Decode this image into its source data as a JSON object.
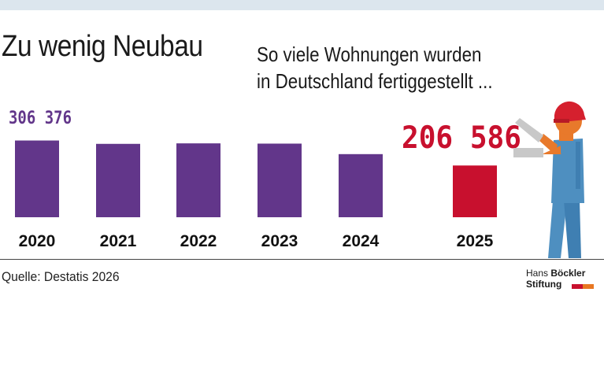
{
  "header": {
    "title": "Zu wenig Neubau",
    "subtitle_line1": "So viele Wohnungen wurden",
    "subtitle_line2": "in Deutschland fertiggestellt ..."
  },
  "chart_data": {
    "type": "bar",
    "categories": [
      "2020",
      "2021",
      "2022",
      "2023",
      "2024",
      "2025"
    ],
    "values": [
      306376,
      293000,
      295000,
      294000,
      252000,
      206586
    ],
    "data_labels": {
      "2020": "306 376",
      "2025": "206 586"
    },
    "ylim": [
      0,
      330000
    ],
    "grid": false,
    "colors": {
      "default": "#62368a",
      "highlight": "#c8102e",
      "highlight_category": "2025"
    }
  },
  "footer": {
    "source": "Quelle: Destatis 2026"
  },
  "logo": {
    "line1_regular": "Hans ",
    "line1_bold": "Böckler",
    "line2": "Stiftung",
    "bar_colors": [
      "#c8102e",
      "#e87722"
    ]
  },
  "illustration": {
    "icon": "construction-worker-icon",
    "colors": {
      "helmet": "#d5202e",
      "skin": "#e8792b",
      "overall": "#4e8fc0",
      "glove": "#c8c8c8"
    }
  }
}
